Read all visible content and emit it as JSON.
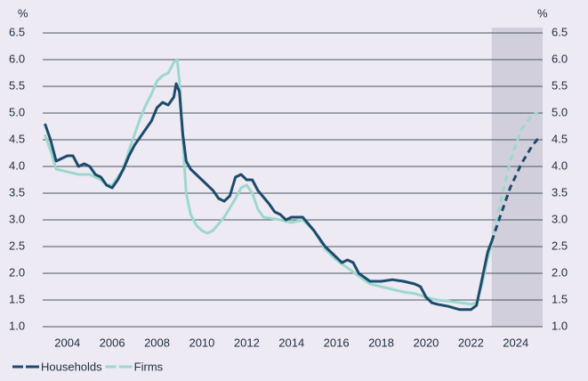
{
  "chart_data": {
    "type": "line",
    "ylabel": "%",
    "xlim": [
      2002.9,
      2025.2
    ],
    "xticks": [
      2004,
      2006,
      2008,
      2010,
      2012,
      2014,
      2016,
      2018,
      2020,
      2022,
      2024
    ],
    "ylim": [
      1.0,
      6.5
    ],
    "yticks": [
      {
        "value": 1,
        "label": "1.0"
      },
      1.5,
      {
        "value": 2,
        "label": "2.0"
      },
      2.5,
      {
        "value": 3,
        "label": "3.0"
      },
      3.5,
      {
        "value": 4,
        "label": "4.0"
      },
      4.5,
      {
        "value": 5,
        "label": "5.0"
      },
      5.5,
      {
        "value": 6,
        "label": "6.0"
      },
      6.5
    ],
    "grid": true,
    "forecast_region": [
      2022.93,
      2025.2
    ],
    "forecast_color": "#d2cfdc",
    "legend": "bottom-left",
    "series": [
      {
        "name": "Households",
        "color": "#1d4b6b",
        "x": [
          2003.0,
          2003.25,
          2003.5,
          2003.75,
          2004.0,
          2004.25,
          2004.5,
          2004.75,
          2005.0,
          2005.25,
          2005.5,
          2005.75,
          2006.0,
          2006.25,
          2006.5,
          2006.75,
          2007.0,
          2007.25,
          2007.5,
          2007.75,
          2008.0,
          2008.25,
          2008.5,
          2008.75,
          2008.85,
          2009.0,
          2009.15,
          2009.3,
          2009.5,
          2010.0,
          2010.5,
          2010.75,
          2011.0,
          2011.25,
          2011.5,
          2011.75,
          2012.0,
          2012.25,
          2012.5,
          2013.0,
          2013.25,
          2013.5,
          2013.75,
          2014.0,
          2014.5,
          2015.0,
          2015.5,
          2016.0,
          2016.25,
          2016.5,
          2016.75,
          2017.0,
          2017.5,
          2018.0,
          2018.5,
          2019.0,
          2019.5,
          2019.75,
          2020.0,
          2020.25,
          2020.5,
          2021.0,
          2021.5,
          2022.0,
          2022.25,
          2022.5,
          2022.75,
          2022.93,
          2023.25,
          2023.75,
          2024.25,
          2024.75,
          2025.0
        ],
        "values": [
          4.8,
          4.5,
          4.1,
          4.15,
          4.2,
          4.2,
          4.0,
          4.05,
          4.0,
          3.85,
          3.8,
          3.65,
          3.6,
          3.75,
          3.95,
          4.2,
          4.4,
          4.55,
          4.7,
          4.85,
          5.1,
          5.2,
          5.15,
          5.3,
          5.55,
          5.4,
          4.6,
          4.1,
          3.95,
          3.75,
          3.55,
          3.4,
          3.35,
          3.45,
          3.8,
          3.85,
          3.75,
          3.75,
          3.55,
          3.3,
          3.15,
          3.1,
          3.0,
          3.05,
          3.05,
          2.8,
          2.5,
          2.3,
          2.2,
          2.25,
          2.2,
          2.0,
          1.85,
          1.85,
          1.88,
          1.85,
          1.8,
          1.75,
          1.55,
          1.45,
          1.42,
          1.38,
          1.32,
          1.32,
          1.4,
          1.9,
          2.4,
          2.6,
          3.0,
          3.6,
          4.05,
          4.4,
          4.52
        ]
      },
      {
        "name": "Firms",
        "color": "#9dd8cd",
        "x": [
          2003.0,
          2003.25,
          2003.5,
          2004.0,
          2004.5,
          2005.0,
          2005.5,
          2005.75,
          2006.0,
          2006.5,
          2006.75,
          2007.0,
          2007.25,
          2007.5,
          2007.75,
          2008.0,
          2008.25,
          2008.5,
          2008.75,
          2008.9,
          2009.0,
          2009.15,
          2009.3,
          2009.5,
          2009.75,
          2010.0,
          2010.25,
          2010.5,
          2011.0,
          2011.5,
          2011.75,
          2012.0,
          2012.25,
          2012.5,
          2012.75,
          2013.5,
          2014.0,
          2014.5,
          2015.0,
          2015.5,
          2016.0,
          2016.5,
          2017.0,
          2017.5,
          2018.0,
          2018.5,
          2019.0,
          2019.5,
          2020.0,
          2020.5,
          2021.0,
          2021.5,
          2022.0,
          2022.25,
          2022.5,
          2022.75,
          2022.93,
          2023.25,
          2023.75,
          2024.25,
          2024.75,
          2025.0
        ],
        "values": [
          4.6,
          4.3,
          3.95,
          3.9,
          3.85,
          3.85,
          3.75,
          3.65,
          3.65,
          3.95,
          4.3,
          4.6,
          4.9,
          5.15,
          5.35,
          5.6,
          5.7,
          5.75,
          5.95,
          6.0,
          5.6,
          4.5,
          3.5,
          3.1,
          2.9,
          2.8,
          2.75,
          2.8,
          3.05,
          3.4,
          3.6,
          3.65,
          3.5,
          3.2,
          3.05,
          3.0,
          2.95,
          3.0,
          2.8,
          2.45,
          2.25,
          2.1,
          1.95,
          1.8,
          1.75,
          1.7,
          1.65,
          1.62,
          1.55,
          1.5,
          1.48,
          1.45,
          1.42,
          1.45,
          1.8,
          2.3,
          2.55,
          3.2,
          4.1,
          4.7,
          4.97,
          5.0
        ]
      }
    ]
  }
}
